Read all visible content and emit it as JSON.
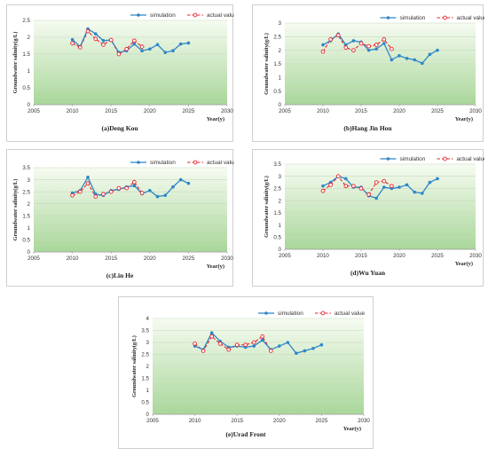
{
  "series_style": {
    "simulation_color": "#2e86c8",
    "actual_color": "#e8242a",
    "plot_gradient_top": "#f6fbf1",
    "plot_gradient_bottom": "#a9d79a"
  },
  "chart_data": [
    {
      "type": "line",
      "caption": "(a)Deng Kou",
      "xlabel": "Year(y)",
      "ylabel": "Groundwater salinity(g/L)",
      "xlim": [
        2005,
        2030
      ],
      "ylim": [
        0,
        2.5
      ],
      "xticks": [
        2005,
        2010,
        2015,
        2020,
        2025,
        2030
      ],
      "yticks": [
        0,
        0.5,
        1,
        1.5,
        2,
        2.5
      ],
      "ytick_labels": [
        "0",
        "0.5",
        "1",
        "1.5",
        "2",
        "2.5"
      ],
      "legend": [
        "simulation",
        "actual value"
      ],
      "legend_position": "top-right",
      "series": [
        {
          "name": "simulation",
          "x": [
            2010,
            2011,
            2012,
            2013,
            2014,
            2015,
            2016,
            2017,
            2018,
            2019,
            2020,
            2021,
            2022,
            2023,
            2024,
            2025
          ],
          "y": [
            1.93,
            1.72,
            2.25,
            2.1,
            1.9,
            1.92,
            1.55,
            1.6,
            1.8,
            1.6,
            1.65,
            1.78,
            1.55,
            1.6,
            1.8,
            1.83
          ]
        },
        {
          "name": "actual value",
          "x": [
            2010,
            2011,
            2012,
            2013,
            2014,
            2015,
            2016,
            2017,
            2018,
            2019
          ],
          "y": [
            1.82,
            1.7,
            2.18,
            1.95,
            1.78,
            1.92,
            1.5,
            1.65,
            1.9,
            1.72
          ]
        }
      ]
    },
    {
      "type": "line",
      "caption": "(b)Hang Jin Hou",
      "xlabel": "Year(y)",
      "ylabel": "Groundwater salinity(g/L)",
      "xlim": [
        2005,
        2030
      ],
      "ylim": [
        0,
        3
      ],
      "xticks": [
        2005,
        2010,
        2015,
        2020,
        2025,
        2030
      ],
      "yticks": [
        0,
        0.5,
        1,
        1.5,
        2,
        2.5,
        3
      ],
      "ytick_labels": [
        "0",
        "0.5",
        "1",
        "1.5",
        "2",
        "2.5",
        "3"
      ],
      "legend": [
        "simulation",
        "actual value"
      ],
      "legend_position": "top-right",
      "series": [
        {
          "name": "simulation",
          "x": [
            2010,
            2011,
            2012,
            2013,
            2014,
            2015,
            2016,
            2017,
            2018,
            2019,
            2020,
            2021,
            2022,
            2023,
            2024,
            2025
          ],
          "y": [
            2.2,
            2.35,
            2.6,
            2.2,
            2.35,
            2.3,
            2.0,
            2.05,
            2.25,
            1.65,
            1.8,
            1.7,
            1.65,
            1.52,
            1.85,
            2.0
          ]
        },
        {
          "name": "actual value",
          "x": [
            2010,
            2011,
            2012,
            2013,
            2014,
            2015,
            2016,
            2017,
            2018,
            2019
          ],
          "y": [
            1.95,
            2.4,
            2.55,
            2.1,
            2.0,
            2.25,
            2.15,
            2.2,
            2.4,
            2.05
          ]
        }
      ]
    },
    {
      "type": "line",
      "caption": "(c)Lin He",
      "xlabel": "Year(y)",
      "ylabel": "Groundwater salinity(g/L)",
      "xlim": [
        2005,
        2030
      ],
      "ylim": [
        0,
        3.5
      ],
      "xticks": [
        2005,
        2010,
        2015,
        2020,
        2025,
        2030
      ],
      "yticks": [
        0,
        0.5,
        1,
        1.5,
        2,
        2.5,
        3,
        3.5
      ],
      "ytick_labels": [
        "0",
        "0.5",
        "1",
        "1.5",
        "2",
        "2.5",
        "3",
        "3.5"
      ],
      "legend": [
        "simulation",
        "actual value"
      ],
      "legend_position": "top-right",
      "series": [
        {
          "name": "simulation",
          "x": [
            2010,
            2011,
            2012,
            2013,
            2014,
            2015,
            2016,
            2017,
            2018,
            2019,
            2020,
            2021,
            2022,
            2023,
            2024,
            2025
          ],
          "y": [
            2.45,
            2.55,
            3.1,
            2.4,
            2.35,
            2.55,
            2.6,
            2.7,
            2.75,
            2.42,
            2.55,
            2.3,
            2.35,
            2.7,
            3.0,
            2.85
          ]
        },
        {
          "name": "actual value",
          "x": [
            2010,
            2011,
            2012,
            2013,
            2014,
            2015,
            2016,
            2017,
            2018,
            2019
          ],
          "y": [
            2.35,
            2.5,
            2.85,
            2.3,
            2.4,
            2.5,
            2.65,
            2.65,
            2.9,
            2.45
          ]
        }
      ]
    },
    {
      "type": "line",
      "caption": "(d)Wu Yuan",
      "xlabel": "Year(y)",
      "ylabel": "Groundwater salinity(g/L)",
      "xlim": [
        2005,
        2030
      ],
      "ylim": [
        0,
        3.5
      ],
      "xticks": [
        2005,
        2010,
        2015,
        2020,
        2025,
        2030
      ],
      "yticks": [
        0,
        0.5,
        1,
        1.5,
        2,
        2.5,
        3,
        3.5
      ],
      "ytick_labels": [
        "0",
        "0.5",
        "1",
        "1.5",
        "2",
        "2.5",
        "3",
        "3.5"
      ],
      "legend": [
        "simulation",
        "actual value"
      ],
      "legend_position": "top-right",
      "series": [
        {
          "name": "simulation",
          "x": [
            2010,
            2011,
            2012,
            2013,
            2014,
            2015,
            2016,
            2017,
            2018,
            2019,
            2020,
            2021,
            2022,
            2023,
            2024,
            2025
          ],
          "y": [
            2.6,
            2.75,
            3.0,
            2.9,
            2.55,
            2.55,
            2.2,
            2.1,
            2.55,
            2.5,
            2.55,
            2.65,
            2.35,
            2.3,
            2.75,
            2.9
          ]
        },
        {
          "name": "actual value",
          "x": [
            2010,
            2011,
            2012,
            2013,
            2014,
            2015,
            2016,
            2017,
            2018,
            2019
          ],
          "y": [
            2.4,
            2.65,
            3.0,
            2.6,
            2.6,
            2.5,
            2.25,
            2.75,
            2.8,
            2.6
          ]
        }
      ]
    },
    {
      "type": "line",
      "caption": "(e)Urad Front",
      "xlabel": "Year(y)",
      "ylabel": "Groundwater salinity(g/L)",
      "xlim": [
        2005,
        2030
      ],
      "ylim": [
        0,
        4
      ],
      "xticks": [
        2005,
        2010,
        2015,
        2020,
        2025,
        2030
      ],
      "yticks": [
        0,
        0.5,
        1,
        1.5,
        2,
        2.5,
        3,
        3.5,
        4
      ],
      "ytick_labels": [
        "0",
        "0.5",
        "1",
        "1.5",
        "2",
        "2.5",
        "3",
        "3.5",
        "4"
      ],
      "legend": [
        "simulation",
        "actual value"
      ],
      "legend_position": "top-right",
      "series": [
        {
          "name": "simulation",
          "x": [
            2010,
            2011,
            2012,
            2013,
            2014,
            2015,
            2016,
            2017,
            2018,
            2019,
            2020,
            2021,
            2022,
            2023,
            2024,
            2025
          ],
          "y": [
            2.85,
            2.7,
            3.4,
            3.05,
            2.8,
            2.85,
            2.8,
            2.85,
            3.1,
            2.7,
            2.85,
            3.0,
            2.55,
            2.65,
            2.75,
            2.9
          ]
        },
        {
          "name": "actual value",
          "x": [
            2010,
            2011,
            2012,
            2013,
            2014,
            2015,
            2016,
            2017,
            2018,
            2019
          ],
          "y": [
            2.95,
            2.65,
            3.25,
            2.95,
            2.7,
            2.9,
            2.9,
            3.0,
            3.25,
            2.65
          ]
        }
      ]
    }
  ]
}
